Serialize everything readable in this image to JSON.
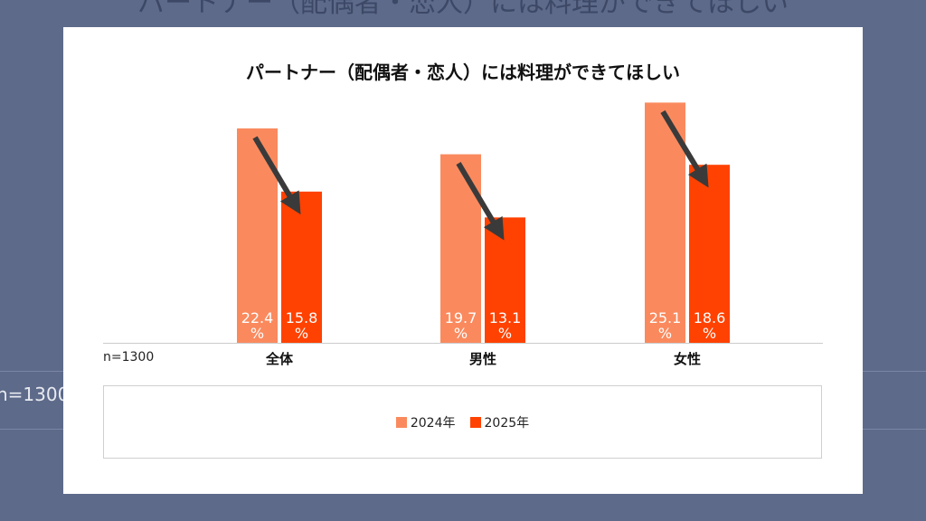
{
  "background": {
    "title": "パートナー（配偶者・恋人）には料理ができてほしい",
    "n_label": "n=1300"
  },
  "chart_data": {
    "type": "bar",
    "title": "パートナー（配偶者・恋人）には料理ができてほしい",
    "categories": [
      "全体",
      "男性",
      "女性"
    ],
    "series": [
      {
        "name": "2024年",
        "values": [
          22.4,
          19.7,
          25.1
        ],
        "color": "#fa8a5e",
        "labels": [
          "22.4%",
          "19.7%",
          "25.1%"
        ]
      },
      {
        "name": "2025年",
        "values": [
          15.8,
          13.1,
          18.6
        ],
        "color": "#ff4202",
        "labels": [
          "15.8%",
          "13.1%",
          "18.6%"
        ]
      }
    ],
    "ylim": [
      0,
      25.8
    ],
    "n_label": "n=1300",
    "grid": false,
    "legend_position": "bottom",
    "annotation": "downward arrows from 2024年 to 2025年 bars",
    "arrow_color": "#3a3a3a"
  }
}
